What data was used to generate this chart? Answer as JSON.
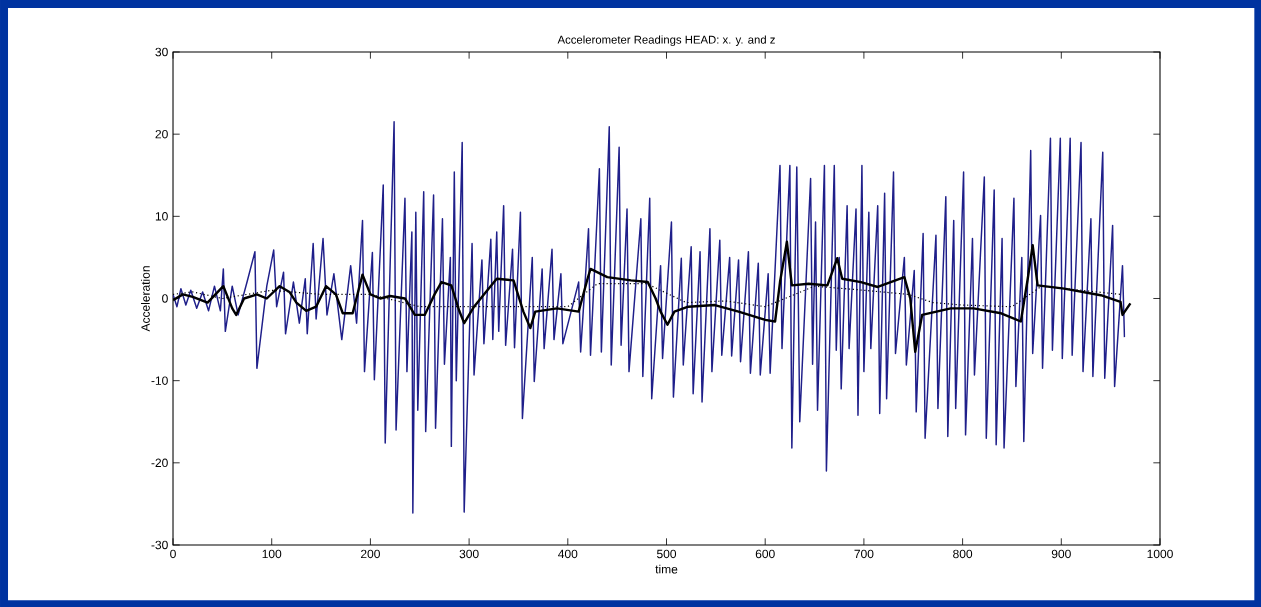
{
  "chart_data": {
    "type": "line",
    "title": "Accelerometer Readings HEAD: x. y. and z",
    "xlabel": "time",
    "ylabel": "Acceleration",
    "xlim": [
      0,
      1000
    ],
    "ylim": [
      -30,
      30
    ],
    "xticks": [
      0,
      100,
      200,
      300,
      400,
      500,
      600,
      700,
      800,
      900,
      1000
    ],
    "yticks": [
      -30,
      -20,
      -10,
      0,
      10,
      20,
      30
    ],
    "grid": false,
    "marker": "none",
    "series": [
      {
        "color": "#1f1f8a",
        "line_style": "solid",
        "x": [
          0,
          4,
          8,
          13,
          18,
          24,
          30,
          36,
          42,
          48,
          51,
          53,
          60,
          66,
          75,
          83,
          85,
          95,
          102,
          105,
          112,
          114,
          122,
          128,
          134,
          136,
          142,
          145,
          152,
          156,
          163,
          171,
          180,
          186,
          192,
          194,
          202,
          204,
          213,
          215,
          224,
          226,
          235,
          237,
          242,
          243,
          246,
          248,
          254,
          256,
          264,
          266,
          273,
          275,
          281,
          282,
          285,
          287,
          293,
          295,
          303,
          305,
          313,
          315,
          322,
          324,
          328,
          330,
          335,
          337,
          344,
          346,
          352,
          354,
          364,
          366,
          374,
          376,
          384,
          386,
          393,
          395,
          411,
          413,
          421,
          423,
          432,
          434,
          442,
          444,
          452,
          454,
          460,
          462,
          474,
          476,
          483,
          485,
          494,
          496,
          505,
          507,
          515,
          517,
          525,
          527,
          534,
          536,
          544,
          546,
          554,
          556,
          564,
          566,
          573,
          575,
          583,
          585,
          593,
          595,
          603,
          605,
          615,
          617,
          625,
          627,
          632,
          635,
          646,
          648,
          651,
          653,
          660,
          662,
          670,
          672,
          675,
          677,
          683,
          685,
          692,
          694,
          698,
          700,
          705,
          707,
          714,
          716,
          721,
          723,
          730,
          732,
          741,
          743,
          751,
          753,
          760,
          762,
          773,
          775,
          783,
          785,
          791,
          793,
          801,
          803,
          810,
          812,
          822,
          824,
          832,
          834,
          840,
          842,
          852,
          854,
          860,
          862,
          869,
          871,
          879,
          881,
          889,
          891,
          899,
          901,
          909,
          911,
          920,
          922,
          930,
          932,
          942,
          944,
          952,
          954,
          962,
          964
        ],
        "values": [
          0.5,
          -1,
          1.2,
          -0.8,
          1,
          -1.2,
          0.8,
          -1.5,
          1.5,
          -1.5,
          3.6,
          -4,
          1.5,
          -2,
          2,
          5.7,
          -8.5,
          1.5,
          5.9,
          -1,
          3.2,
          -4.3,
          2,
          -3,
          2.4,
          -4.3,
          6.7,
          -2.5,
          7.3,
          -2,
          3,
          -5,
          4,
          -3,
          9.5,
          -8.9,
          5.6,
          -9.9,
          13.8,
          -17.6,
          21.5,
          -16,
          12.2,
          -8.9,
          8.1,
          -26.1,
          10.5,
          -13.6,
          13,
          -16.2,
          12.6,
          -15.8,
          9.7,
          -8,
          5,
          -18,
          15.4,
          -10,
          19,
          -26,
          6.7,
          -9.3,
          4.7,
          -5.5,
          7.2,
          -5,
          8.1,
          -4,
          11.3,
          -5.7,
          6,
          -6,
          10.5,
          -14.6,
          5,
          -10.1,
          3.6,
          -6.1,
          6,
          -5,
          3,
          -5.5,
          2,
          -6.5,
          8.5,
          -6.9,
          15.8,
          -6.5,
          20.9,
          -8.1,
          18.4,
          -5.7,
          10.9,
          -8.9,
          9.7,
          -9.5,
          12.2,
          -12.2,
          4,
          -7.3,
          9.3,
          -12,
          4.9,
          -8.1,
          6.3,
          -11.6,
          5.7,
          -12.6,
          8.5,
          -8.9,
          7.1,
          -6.9,
          5,
          -7,
          4.7,
          -7.7,
          5.7,
          -9.1,
          4.3,
          -9.3,
          3,
          -9.1,
          16.2,
          -6.1,
          16.2,
          -18.2,
          16,
          -15,
          14.6,
          -8,
          9.3,
          -13.6,
          16.2,
          -21,
          16.2,
          -6.3,
          5,
          -11,
          11.3,
          -6.1,
          10.9,
          -14.2,
          16.2,
          -8.9,
          10.5,
          -6.1,
          11.3,
          -14,
          12.8,
          -12.2,
          15.4,
          -6.7,
          5,
          -8.1,
          3.4,
          -13.8,
          7.9,
          -17,
          7.7,
          -13.4,
          12.4,
          -16.8,
          9.5,
          -13.4,
          15.4,
          -16.6,
          7.3,
          -9.3,
          14.8,
          -17,
          13.2,
          -17.8,
          7.3,
          -18.2,
          12.2,
          -10.7,
          5,
          -17.4,
          18,
          -6.7,
          10.1,
          -8.5,
          19.5,
          -6.3,
          19.5,
          -7.3,
          19.5,
          -6.9,
          19,
          -8.9,
          9.7,
          -9.5,
          17.8,
          -9.7,
          8.9,
          -10.7,
          4,
          -4.7
        ]
      },
      {
        "color": "#000000",
        "line_style": "dotted",
        "x": [
          0,
          20,
          50,
          100,
          150,
          200,
          250,
          300,
          350,
          400,
          430,
          480,
          520,
          560,
          600,
          650,
          700,
          745,
          770,
          800,
          850,
          880,
          920,
          960
        ],
        "values": [
          0.5,
          0.8,
          0,
          1,
          0.5,
          0.5,
          -1,
          -1,
          -1,
          -1,
          1.8,
          1.8,
          -0.5,
          -0.3,
          -1,
          1.5,
          1,
          0.5,
          -0.5,
          -0.8,
          -1,
          1.5,
          1,
          0.5
        ]
      },
      {
        "color": "#000000",
        "line_style": "solid",
        "x": [
          0,
          10,
          20,
          35,
          51,
          60,
          64,
          72,
          85,
          95,
          108,
          118,
          125,
          135,
          145,
          155,
          165,
          172,
          182,
          192,
          200,
          210,
          220,
          235,
          245,
          255,
          265,
          272,
          282,
          290,
          295,
          305,
          315,
          328,
          345,
          355,
          362,
          367,
          389,
          411,
          420,
          423,
          440,
          464,
          481,
          489,
          494,
          501,
          508,
          522,
          549,
          573,
          600,
          610,
          615,
          622,
          627,
          644,
          663,
          673,
          678,
          697,
          714,
          741,
          747,
          752,
          759,
          788,
          811,
          839,
          859,
          866,
          871,
          876,
          903,
          940,
          960,
          962,
          970
        ],
        "values": [
          -0.2,
          0.5,
          0.2,
          -0.5,
          1.5,
          -1.2,
          -2,
          0,
          0.5,
          0,
          1.5,
          0.8,
          -0.5,
          -1.5,
          -1,
          1.5,
          0.5,
          -1.8,
          -1.8,
          2.9,
          0.5,
          0,
          0.3,
          0,
          -2,
          -2,
          0.5,
          2,
          1.6,
          -1.5,
          -3,
          -1,
          0.5,
          2.4,
          2.2,
          -1.6,
          -3.6,
          -1.6,
          -1.2,
          -1.6,
          2.4,
          3.6,
          2.6,
          2.2,
          2,
          0,
          -1.6,
          -3.2,
          -1.6,
          -1,
          -0.8,
          -1.6,
          -2.6,
          -2.8,
          2,
          6.9,
          1.6,
          1.8,
          1.6,
          4.9,
          2.4,
          2,
          1.4,
          2.6,
          0,
          -6.5,
          -2,
          -1.2,
          -1.2,
          -1.8,
          -2.8,
          2.4,
          6.5,
          1.6,
          1.2,
          0.4,
          -0.4,
          -2,
          -0.6
        ]
      }
    ]
  }
}
